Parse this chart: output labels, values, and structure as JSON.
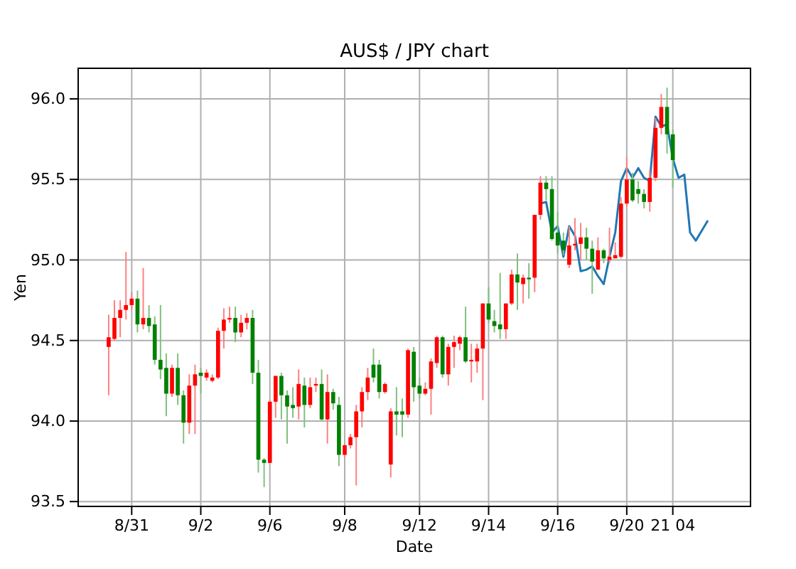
{
  "chart_data": {
    "type": "candlestick",
    "title": "AUS$ / JPY chart",
    "xlabel": "Date",
    "ylabel": "Yen",
    "ylim": [
      93.47,
      96.19
    ],
    "grid": true,
    "categories": [
      null,
      null,
      null,
      null,
      "8/31",
      null,
      null,
      null,
      null,
      null,
      null,
      null,
      null,
      null,
      null,
      null,
      "9/2",
      null,
      null,
      null,
      null,
      null,
      null,
      null,
      null,
      null,
      null,
      null,
      "9/6",
      null,
      null,
      null,
      null,
      null,
      null,
      null,
      null,
      null,
      null,
      null,
      null,
      "9/8",
      null,
      null,
      null,
      null,
      null,
      null,
      null,
      null,
      null,
      null,
      null,
      null,
      "9/12",
      null,
      null,
      null,
      null,
      null,
      null,
      null,
      null,
      null,
      null,
      null,
      "9/14",
      null,
      null,
      null,
      null,
      null,
      null,
      null,
      null,
      null,
      null,
      null,
      "9/16",
      null,
      null,
      null,
      null,
      null,
      null,
      null,
      null,
      null,
      null,
      null,
      "9/20",
      null,
      null,
      null,
      null,
      null,
      null,
      null,
      "21 04",
      null,
      null,
      null,
      null,
      null,
      null
    ],
    "yticks": [
      93.5,
      {
        "value": 94,
        "label": "94.0"
      },
      94.5,
      {
        "value": 95,
        "label": "95.0"
      },
      95.5,
      {
        "value": 96,
        "label": "96.0"
      }
    ],
    "series": [
      {
        "type": "line",
        "color": "#1f77b4",
        "values": [
          null,
          null,
          null,
          null,
          null,
          null,
          null,
          null,
          null,
          null,
          null,
          null,
          null,
          null,
          null,
          null,
          null,
          null,
          null,
          null,
          null,
          null,
          null,
          null,
          null,
          null,
          null,
          null,
          null,
          null,
          null,
          null,
          null,
          null,
          null,
          null,
          null,
          null,
          null,
          null,
          null,
          null,
          null,
          null,
          null,
          null,
          null,
          null,
          null,
          null,
          null,
          null,
          null,
          null,
          null,
          null,
          null,
          null,
          null,
          null,
          null,
          null,
          null,
          null,
          null,
          null,
          null,
          null,
          null,
          null,
          null,
          null,
          null,
          null,
          null,
          95.35,
          95.36,
          95.17,
          95.21,
          95.02,
          95.21,
          95.15,
          94.93,
          94.94,
          94.96,
          94.9,
          94.85,
          95.02,
          95.17,
          95.49,
          95.57,
          95.51,
          95.57,
          95.51,
          95.49,
          95.89,
          95.83,
          95.84,
          95.63,
          95.51,
          95.53,
          95.17,
          95.12,
          95.18,
          95.24
        ]
      },
      {
        "type": "candlestick",
        "colors": [
          "#ff0000",
          "#ff0000",
          "#ff0000",
          "#ff0000",
          "#ff0000",
          "#008000",
          "#ff0000",
          "#008000",
          "#008000",
          "#008000",
          "#008000",
          "#ff0000",
          "#008000",
          "#008000",
          "#ff0000",
          "#ff0000",
          "#008000",
          "#ff0000",
          "#ff0000",
          "#ff0000",
          "#ff0000",
          "#ff0000",
          "#008000",
          "#ff0000",
          "#ff0000",
          "#008000",
          "#008000",
          "#008000",
          "#ff0000",
          "#ff0000",
          "#008000",
          "#008000",
          "#008000",
          "#ff0000",
          "#008000",
          "#ff0000",
          "#ff0000",
          "#008000",
          "#ff0000",
          "#008000",
          "#008000",
          "#ff0000",
          "#ff0000",
          "#ff0000",
          "#ff0000",
          "#ff0000",
          "#008000",
          "#008000",
          "#ff0000",
          "#ff0000",
          "#008000",
          "#008000",
          "#ff0000",
          "#008000",
          "#008000",
          "#ff0000",
          "#ff0000",
          "#ff0000",
          "#008000",
          "#ff0000",
          "#ff0000",
          "#ff0000",
          "#008000",
          "#ff0000",
          "#ff0000",
          "#ff0000",
          "#008000",
          "#008000",
          "#008000",
          "#ff0000",
          "#ff0000",
          "#008000",
          "#ff0000",
          "#008000",
          "#ff0000",
          "#ff0000",
          "#008000",
          "#008000",
          "#008000",
          "#008000",
          "#ff0000",
          "#ff0000",
          "#ff0000",
          "#008000",
          "#008000",
          "#ff0000",
          "#008000",
          "#ff0000",
          "#ff0000",
          "#ff0000",
          "#ff0000",
          "#008000",
          "#008000",
          "#008000",
          "#ff0000",
          "#ff0000",
          "#ff0000",
          "#008000",
          "#008000",
          null,
          null,
          null,
          null,
          null,
          null
        ],
        "ohlc": [
          [
            94.46,
            94.66,
            94.16,
            94.52
          ],
          [
            94.51,
            94.75,
            94.5,
            94.64
          ],
          [
            94.64,
            94.75,
            94.52,
            94.69
          ],
          [
            94.69,
            95.05,
            94.63,
            94.72
          ],
          [
            94.72,
            94.8,
            94.69,
            94.76
          ],
          [
            94.76,
            94.81,
            94.55,
            94.6
          ],
          [
            94.6,
            94.95,
            94.57,
            94.64
          ],
          [
            94.64,
            94.72,
            94.55,
            94.59
          ],
          [
            94.6,
            94.65,
            94.35,
            94.38
          ],
          [
            94.38,
            94.72,
            94.26,
            94.32
          ],
          [
            94.33,
            94.42,
            94.03,
            94.17
          ],
          [
            94.17,
            94.35,
            94.15,
            94.33
          ],
          [
            94.33,
            94.42,
            94.1,
            94.16
          ],
          [
            94.16,
            94.19,
            93.86,
            93.99
          ],
          [
            93.99,
            94.29,
            93.92,
            94.22
          ],
          [
            94.22,
            94.35,
            93.92,
            94.29
          ],
          [
            94.3,
            94.33,
            94.17,
            94.28
          ],
          [
            94.27,
            94.32,
            94.25,
            94.3
          ],
          [
            94.25,
            94.29,
            94.24,
            94.27
          ],
          [
            94.27,
            94.58,
            94.26,
            94.56
          ],
          [
            94.56,
            94.7,
            94.45,
            94.63
          ],
          [
            94.63,
            94.71,
            94.61,
            94.64
          ],
          [
            94.64,
            94.71,
            94.49,
            94.55
          ],
          [
            94.55,
            94.66,
            94.52,
            94.61
          ],
          [
            94.61,
            94.67,
            94.57,
            94.64
          ],
          [
            94.64,
            94.69,
            94.23,
            94.3
          ],
          [
            94.3,
            94.38,
            93.68,
            93.76
          ],
          [
            93.76,
            93.77,
            93.59,
            93.74
          ],
          [
            93.74,
            94.13,
            93.74,
            94.12
          ],
          [
            94.12,
            94.28,
            94.02,
            94.28
          ],
          [
            94.28,
            94.3,
            94.01,
            94.16
          ],
          [
            94.16,
            94.19,
            93.86,
            94.09
          ],
          [
            94.1,
            94.21,
            94.02,
            94.08
          ],
          [
            94.09,
            94.32,
            94.01,
            94.23
          ],
          [
            94.22,
            94.27,
            93.96,
            94.1
          ],
          [
            94.1,
            94.27,
            94.08,
            94.21
          ],
          [
            94.22,
            94.27,
            94.18,
            94.23
          ],
          [
            94.23,
            94.32,
            94.0,
            94.01
          ],
          [
            94.01,
            94.29,
            93.86,
            94.18
          ],
          [
            94.18,
            94.2,
            94.07,
            94.11
          ],
          [
            94.1,
            94.15,
            93.72,
            93.79
          ],
          [
            93.79,
            93.86,
            93.77,
            93.85
          ],
          [
            93.85,
            93.92,
            93.83,
            93.9
          ],
          [
            93.9,
            94.1,
            93.6,
            94.06
          ],
          [
            94.06,
            94.21,
            93.96,
            94.18
          ],
          [
            94.18,
            94.33,
            94.13,
            94.27
          ],
          [
            94.35,
            94.45,
            94.24,
            94.27
          ],
          [
            94.35,
            94.38,
            94.14,
            94.18
          ],
          [
            94.18,
            94.24,
            94.17,
            94.23
          ],
          [
            93.73,
            94.08,
            93.65,
            94.06
          ],
          [
            94.06,
            94.21,
            93.91,
            94.04
          ],
          [
            94.06,
            94.14,
            93.9,
            94.04
          ],
          [
            94.04,
            94.45,
            94.02,
            94.44
          ],
          [
            94.43,
            94.46,
            94.12,
            94.21
          ],
          [
            94.22,
            94.27,
            94.14,
            94.17
          ],
          [
            94.17,
            94.24,
            94.16,
            94.2
          ],
          [
            94.2,
            94.39,
            94.04,
            94.37
          ],
          [
            94.36,
            94.53,
            94.33,
            94.52
          ],
          [
            94.52,
            94.53,
            94.27,
            94.29
          ],
          [
            94.29,
            94.48,
            94.22,
            94.46
          ],
          [
            94.46,
            94.53,
            94.33,
            94.49
          ],
          [
            94.48,
            94.53,
            94.44,
            94.52
          ],
          [
            94.52,
            94.71,
            94.36,
            94.37
          ],
          [
            94.37,
            94.48,
            94.24,
            94.38
          ],
          [
            94.37,
            94.48,
            94.3,
            94.45
          ],
          [
            94.45,
            94.73,
            94.13,
            94.73
          ],
          [
            94.73,
            94.83,
            94.61,
            94.63
          ],
          [
            94.62,
            94.69,
            94.55,
            94.59
          ],
          [
            94.6,
            94.92,
            94.51,
            94.57
          ],
          [
            94.57,
            94.73,
            94.51,
            94.73
          ],
          [
            94.73,
            94.94,
            94.72,
            94.91
          ],
          [
            94.91,
            95.04,
            94.69,
            94.86
          ],
          [
            94.85,
            94.91,
            94.73,
            94.89
          ],
          [
            94.89,
            94.98,
            94.76,
            94.88
          ],
          [
            94.89,
            95.28,
            94.8,
            95.28
          ],
          [
            95.28,
            95.52,
            95.25,
            95.48
          ],
          [
            95.48,
            95.52,
            95.37,
            95.44
          ],
          [
            95.44,
            95.52,
            95.12,
            95.13
          ],
          [
            95.17,
            95.3,
            95.04,
            95.09
          ],
          [
            95.12,
            95.17,
            95.03,
            95.06
          ],
          [
            94.97,
            95.21,
            94.95,
            95.09
          ],
          [
            95.09,
            95.26,
            95.06,
            95.1
          ],
          [
            95.1,
            95.23,
            95.0,
            95.14
          ],
          [
            95.14,
            95.2,
            95.0,
            95.07
          ],
          [
            95.07,
            95.12,
            94.79,
            94.99
          ],
          [
            94.94,
            95.14,
            94.94,
            95.06
          ],
          [
            95.06,
            95.07,
            94.98,
            95.01
          ],
          [
            95.0,
            95.2,
            94.98,
            95.02
          ],
          [
            95.01,
            95.11,
            95.01,
            95.03
          ],
          [
            95.02,
            95.39,
            95.01,
            95.35
          ],
          [
            95.35,
            95.64,
            95.33,
            95.5
          ],
          [
            95.5,
            95.54,
            95.36,
            95.37
          ],
          [
            95.44,
            95.49,
            95.35,
            95.41
          ],
          [
            95.41,
            95.44,
            95.32,
            95.36
          ],
          [
            95.36,
            95.56,
            95.3,
            95.51
          ],
          [
            95.51,
            95.88,
            95.49,
            95.82
          ],
          [
            95.82,
            96.03,
            95.78,
            95.95
          ],
          [
            95.95,
            96.07,
            95.66,
            95.78
          ],
          [
            95.78,
            95.81,
            95.45,
            95.62
          ],
          null,
          null,
          null,
          null,
          null,
          null
        ]
      }
    ]
  }
}
